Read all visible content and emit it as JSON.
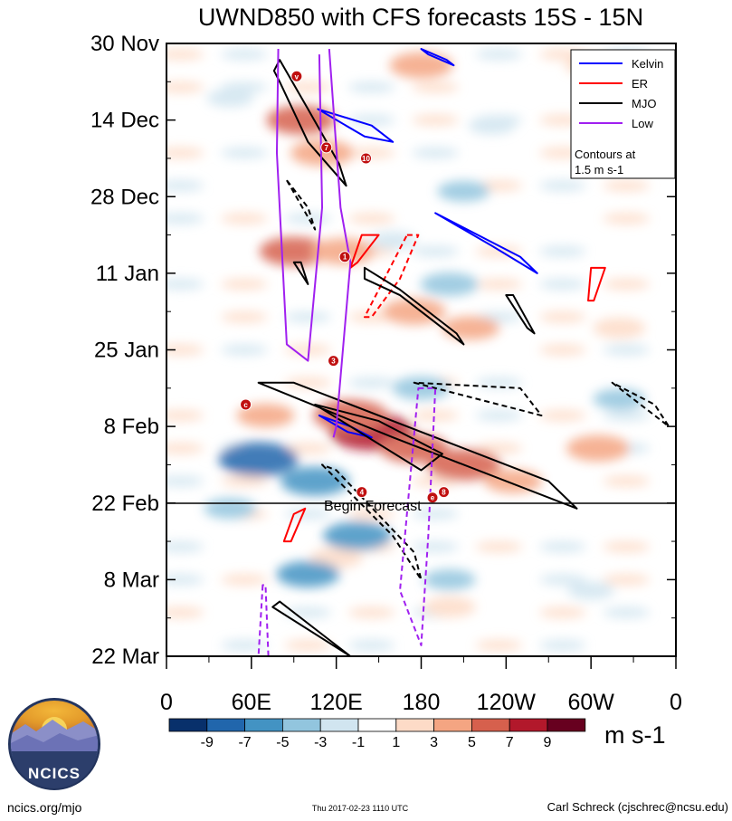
{
  "chart_data": {
    "type": "heatmap",
    "title": "UWND850 with CFS forecasts  15S - 15N",
    "x_axis": {
      "tick_labels": [
        "0",
        "60E",
        "120E",
        "180",
        "120W",
        "60W",
        "0"
      ],
      "tick_degrees": [
        0,
        60,
        120,
        180,
        240,
        300,
        360
      ],
      "range": [
        0,
        360
      ]
    },
    "y_axis": {
      "tick_labels": [
        "30 Nov",
        "14 Dec",
        "28 Dec",
        "11 Jan",
        "25 Jan",
        "8 Feb",
        "22 Feb",
        "8 Mar",
        "22 Mar"
      ],
      "tick_days": [
        0,
        14,
        28,
        42,
        56,
        70,
        84,
        98,
        112
      ],
      "range_days": [
        0,
        112
      ],
      "reversed": true
    },
    "forecast_line": {
      "label": "Begin Forecast",
      "day": 84
    },
    "colorbar": {
      "units": "m s-1",
      "tick_labels": [
        "-9",
        "-7",
        "-5",
        "-3",
        "-1",
        "1",
        "3",
        "5",
        "7",
        "9"
      ],
      "colors": [
        "#08306b",
        "#2166ac",
        "#4393c3",
        "#92c5de",
        "#d1e5f0",
        "#ffffff",
        "#fddbc7",
        "#f4a582",
        "#d6604d",
        "#b2182b",
        "#67001f"
      ]
    },
    "legend": {
      "entries": [
        {
          "label": "Kelvin",
          "color": "#0000ff"
        },
        {
          "label": "ER",
          "color": "#ff0000"
        },
        {
          "label": "MJO",
          "color": "#000000"
        },
        {
          "label": "Low",
          "color": "#a020f0"
        }
      ],
      "note": "Contours at\n1.5 m s-1",
      "placement": "top-right"
    },
    "anomaly_features": [
      {
        "lon": 95,
        "day": 14,
        "value": 6
      },
      {
        "lon": 110,
        "day": 20,
        "value": 5
      },
      {
        "lon": 180,
        "day": 4,
        "value": 5
      },
      {
        "lon": 300,
        "day": 4,
        "value": 3
      },
      {
        "lon": 90,
        "day": 38,
        "value": 6
      },
      {
        "lon": 125,
        "day": 38,
        "value": 5
      },
      {
        "lon": 175,
        "day": 49,
        "value": 5
      },
      {
        "lon": 215,
        "day": 52,
        "value": 4
      },
      {
        "lon": 320,
        "day": 52,
        "value": 3
      },
      {
        "lon": 145,
        "day": 71,
        "value": 9
      },
      {
        "lon": 130,
        "day": 68,
        "value": 7
      },
      {
        "lon": 175,
        "day": 74,
        "value": 6
      },
      {
        "lon": 210,
        "day": 77,
        "value": 7
      },
      {
        "lon": 245,
        "day": 80,
        "value": 4
      },
      {
        "lon": 305,
        "day": 74,
        "value": 5
      },
      {
        "lon": 70,
        "day": 68,
        "value": 4
      },
      {
        "lon": 120,
        "day": 94,
        "value": 3
      },
      {
        "lon": 200,
        "day": 103,
        "value": 3
      },
      {
        "lon": 65,
        "day": 76,
        "value": -8
      },
      {
        "lon": 105,
        "day": 80,
        "value": -6
      },
      {
        "lon": 135,
        "day": 90,
        "value": -6
      },
      {
        "lon": 100,
        "day": 97,
        "value": -5
      },
      {
        "lon": 200,
        "day": 44,
        "value": -4
      },
      {
        "lon": 180,
        "day": 63,
        "value": -4
      },
      {
        "lon": 45,
        "day": 85,
        "value": -3
      },
      {
        "lon": 320,
        "day": 65,
        "value": -3
      },
      {
        "lon": 45,
        "day": 10,
        "value": -2
      },
      {
        "lon": 210,
        "day": 27,
        "value": -3
      },
      {
        "lon": 230,
        "day": 15,
        "value": -2
      },
      {
        "lon": 200,
        "day": 98,
        "value": -3
      },
      {
        "lon": 300,
        "day": 100,
        "value": -2
      },
      {
        "lon": 160,
        "day": 36,
        "value": -2
      }
    ],
    "contours": [
      {
        "kind": "Kelvin",
        "sign": "pos",
        "pts": [
          [
            107,
            12
          ],
          [
            140,
            17
          ],
          [
            160,
            18
          ],
          [
            145,
            15
          ],
          [
            107,
            12
          ]
        ]
      },
      {
        "kind": "Kelvin",
        "sign": "pos",
        "pts": [
          [
            190,
            31
          ],
          [
            230,
            37
          ],
          [
            262,
            42
          ],
          [
            250,
            39
          ],
          [
            190,
            31
          ]
        ]
      },
      {
        "kind": "Kelvin",
        "sign": "pos",
        "pts": [
          [
            180,
            1
          ],
          [
            198,
            3
          ],
          [
            203,
            4
          ],
          [
            185,
            2
          ],
          [
            180,
            1
          ]
        ]
      },
      {
        "kind": "Kelvin",
        "sign": "pos",
        "pts": [
          [
            108,
            68
          ],
          [
            130,
            70
          ],
          [
            145,
            72
          ],
          [
            128,
            71
          ],
          [
            108,
            68
          ]
        ]
      },
      {
        "kind": "ER",
        "sign": "pos",
        "pts": [
          [
            138,
            35
          ],
          [
            150,
            35
          ],
          [
            135,
            40
          ],
          [
            130,
            41
          ],
          [
            138,
            35
          ]
        ]
      },
      {
        "kind": "ER",
        "sign": "pos",
        "pts": [
          [
            300,
            41
          ],
          [
            310,
            41
          ],
          [
            302,
            47
          ],
          [
            298,
            47
          ],
          [
            300,
            41
          ]
        ]
      },
      {
        "kind": "ER",
        "sign": "pos",
        "pts": [
          [
            90,
            86
          ],
          [
            98,
            85
          ],
          [
            88,
            91
          ],
          [
            83,
            91
          ],
          [
            90,
            86
          ]
        ]
      },
      {
        "kind": "ER",
        "sign": "neg",
        "pts": [
          [
            170,
            35
          ],
          [
            178,
            35
          ],
          [
            165,
            43
          ],
          [
            145,
            50
          ],
          [
            140,
            50
          ],
          [
            160,
            40
          ],
          [
            170,
            35
          ]
        ]
      },
      {
        "kind": "MJO",
        "sign": "pos",
        "pts": [
          [
            76,
            5
          ],
          [
            80,
            7
          ],
          [
            100,
            18
          ],
          [
            127,
            26
          ],
          [
            122,
            22
          ],
          [
            100,
            12
          ],
          [
            80,
            3
          ],
          [
            76,
            5
          ]
        ]
      },
      {
        "kind": "MJO",
        "sign": "pos",
        "pts": [
          [
            140,
            43
          ],
          [
            165,
            46
          ],
          [
            210,
            55
          ],
          [
            205,
            53
          ],
          [
            165,
            45
          ],
          [
            140,
            41
          ],
          [
            140,
            43
          ]
        ]
      },
      {
        "kind": "MJO",
        "sign": "pos",
        "pts": [
          [
            65,
            62
          ],
          [
            160,
            72
          ],
          [
            290,
            85
          ],
          [
            270,
            80
          ],
          [
            180,
            71
          ],
          [
            90,
            62
          ],
          [
            65,
            62
          ]
        ]
      },
      {
        "kind": "MJO",
        "sign": "pos",
        "pts": [
          [
            105,
            66
          ],
          [
            180,
            78
          ],
          [
            195,
            75
          ],
          [
            150,
            69
          ],
          [
            105,
            66
          ]
        ]
      },
      {
        "kind": "MJO",
        "sign": "pos",
        "pts": [
          [
            240,
            46
          ],
          [
            255,
            52
          ],
          [
            260,
            53
          ],
          [
            245,
            46
          ],
          [
            240,
            46
          ]
        ]
      },
      {
        "kind": "MJO",
        "sign": "pos",
        "pts": [
          [
            75,
            103
          ],
          [
            130,
            112
          ],
          [
            115,
            109
          ],
          [
            80,
            102
          ],
          [
            75,
            103
          ]
        ]
      },
      {
        "kind": "MJO",
        "sign": "pos",
        "pts": [
          [
            90,
            40
          ],
          [
            100,
            44
          ],
          [
            95,
            40
          ],
          [
            90,
            40
          ]
        ]
      },
      {
        "kind": "MJO",
        "sign": "neg",
        "pts": [
          [
            85,
            25
          ],
          [
            105,
            34
          ],
          [
            100,
            30
          ],
          [
            85,
            25
          ]
        ]
      },
      {
        "kind": "MJO",
        "sign": "neg",
        "pts": [
          [
            110,
            77
          ],
          [
            160,
            90
          ],
          [
            180,
            98
          ],
          [
            175,
            93
          ],
          [
            120,
            78
          ],
          [
            110,
            77
          ]
        ]
      },
      {
        "kind": "MJO",
        "sign": "neg",
        "pts": [
          [
            175,
            62
          ],
          [
            265,
            68
          ],
          [
            250,
            63
          ],
          [
            175,
            62
          ]
        ]
      },
      {
        "kind": "MJO",
        "sign": "neg",
        "pts": [
          [
            315,
            62
          ],
          [
            355,
            70
          ],
          [
            345,
            66
          ],
          [
            315,
            62
          ]
        ]
      },
      {
        "kind": "Low",
        "sign": "pos",
        "pts": [
          [
            79,
            1
          ],
          [
            78,
            20
          ],
          [
            85,
            55
          ],
          [
            100,
            58
          ],
          [
            110,
            30
          ],
          [
            108,
            2
          ]
        ]
      },
      {
        "kind": "Low",
        "sign": "pos",
        "pts": [
          [
            115,
            1
          ],
          [
            123,
            30
          ],
          [
            130,
            40
          ],
          [
            120,
            70
          ],
          [
            118,
            72
          ]
        ]
      },
      {
        "kind": "Low",
        "sign": "neg",
        "pts": [
          [
            178,
            63
          ],
          [
            190,
            63
          ],
          [
            185,
            90
          ],
          [
            180,
            110
          ],
          [
            165,
            100
          ],
          [
            178,
            63
          ]
        ]
      },
      {
        "kind": "Low",
        "sign": "neg",
        "pts": [
          [
            68,
            99
          ],
          [
            65,
            112
          ],
          [
            72,
            112
          ],
          [
            70,
            99
          ],
          [
            68,
            99
          ]
        ]
      }
    ],
    "storm_markers": [
      {
        "lon": 92,
        "day": 6,
        "label": "v"
      },
      {
        "lon": 113,
        "day": 19,
        "label": "7"
      },
      {
        "lon": 141,
        "day": 21,
        "label": "10"
      },
      {
        "lon": 126,
        "day": 39,
        "label": "1"
      },
      {
        "lon": 118,
        "day": 58,
        "label": "3"
      },
      {
        "lon": 56,
        "day": 66,
        "label": "c"
      },
      {
        "lon": 138,
        "day": 82,
        "label": "4"
      },
      {
        "lon": 188,
        "day": 83,
        "label": "e"
      },
      {
        "lon": 196,
        "day": 82,
        "label": "8"
      }
    ]
  },
  "footer": {
    "logo_text": "NCICS",
    "url": "ncics.org/mjo",
    "timestamp": "Thu 2017-02-23 1110 UTC",
    "author": "Carl Schreck (cjschrec@ncsu.edu)"
  }
}
